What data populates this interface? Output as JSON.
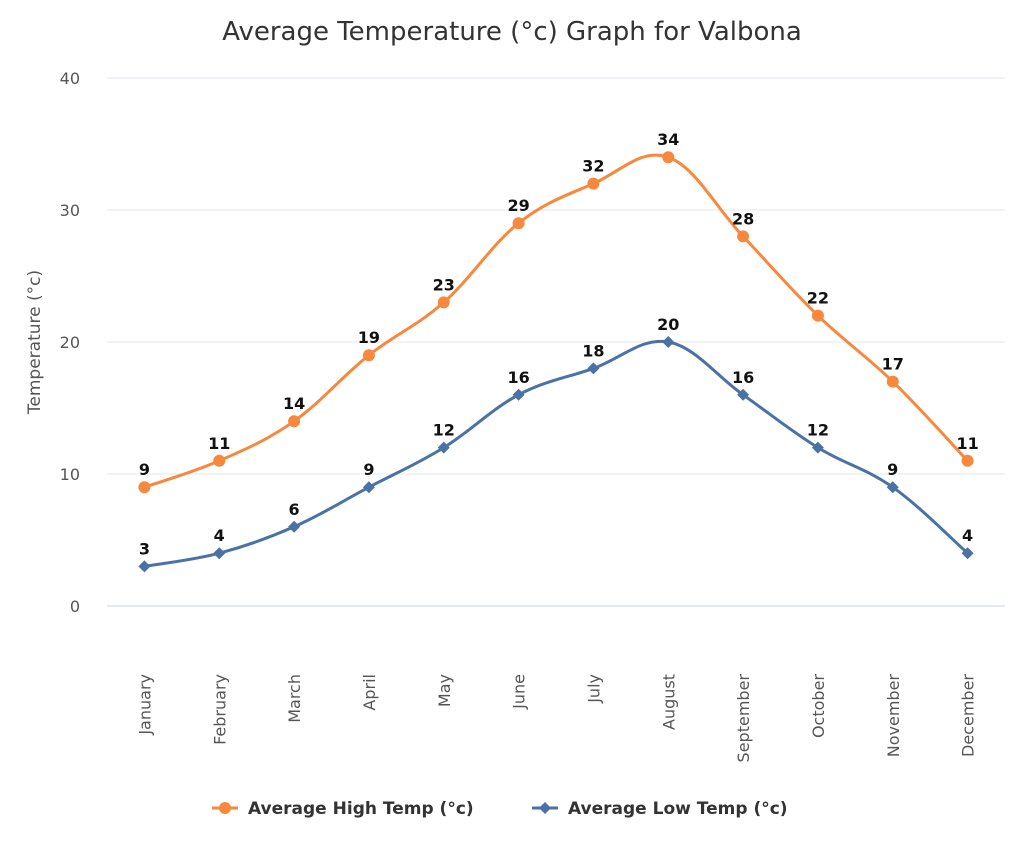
{
  "chart_data": {
    "type": "line",
    "title": "Average Temperature (°c) Graph for Valbona",
    "xlabel": "",
    "ylabel": "Temperature (°c)",
    "ylim": [
      0,
      40
    ],
    "yticks": [
      0,
      10,
      20,
      30,
      40
    ],
    "grid": true,
    "legend_position": "bottom",
    "categories": [
      "January",
      "February",
      "March",
      "April",
      "May",
      "June",
      "July",
      "August",
      "September",
      "October",
      "November",
      "December"
    ],
    "series": [
      {
        "name": "Average High Temp (°c)",
        "color": "#f7883d",
        "marker": "circle",
        "values": [
          9,
          11,
          14,
          19,
          23,
          29,
          32,
          34,
          28,
          22,
          17,
          11
        ]
      },
      {
        "name": "Average Low Temp (°c)",
        "color": "#4a72a6",
        "marker": "diamond",
        "values": [
          3,
          4,
          6,
          9,
          12,
          16,
          18,
          20,
          16,
          12,
          9,
          4
        ]
      }
    ]
  }
}
